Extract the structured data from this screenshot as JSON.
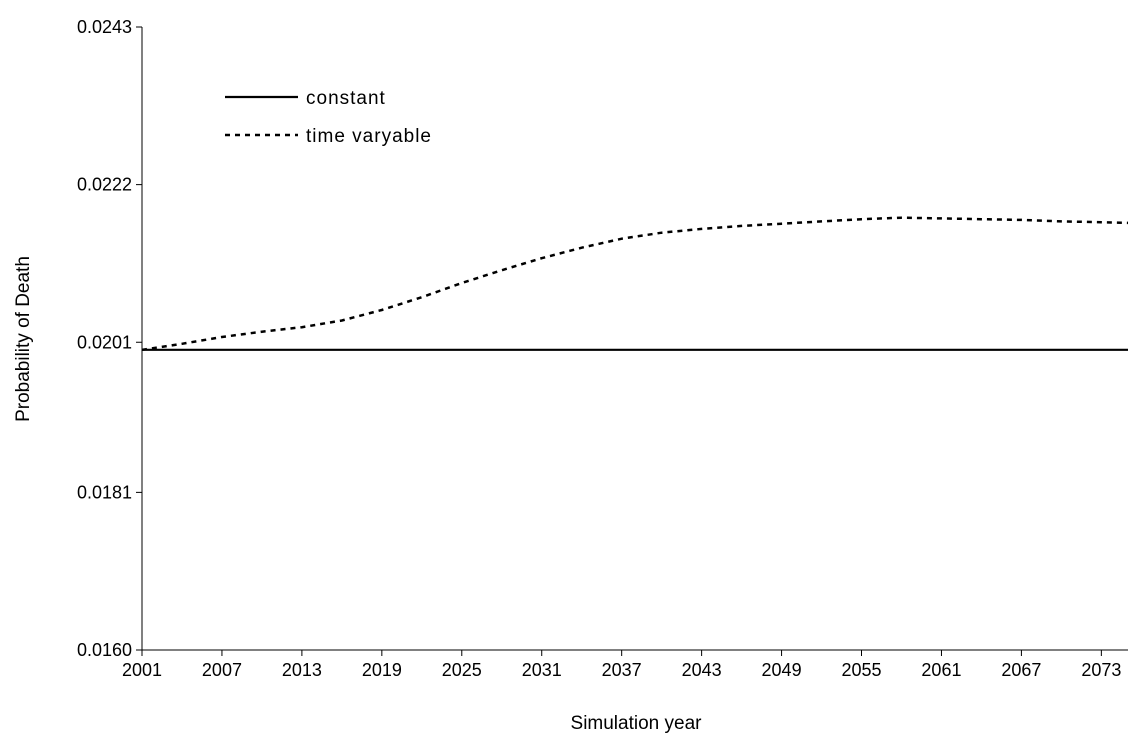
{
  "chart_data": {
    "type": "line",
    "title": "",
    "xlabel": "Simulation year",
    "ylabel": "Probability of Death",
    "xlim": [
      2001,
      2075
    ],
    "ylim": [
      0.016,
      0.0243
    ],
    "x_ticks": [
      2001,
      2007,
      2013,
      2019,
      2025,
      2031,
      2037,
      2043,
      2049,
      2055,
      2061,
      2067,
      2073
    ],
    "x_tick_labels": [
      "2001",
      "2007",
      "2013",
      "2019",
      "2025",
      "2031",
      "2037",
      "2043",
      "2049",
      "2055",
      "2061",
      "2067",
      "2073"
    ],
    "y_ticks": [
      0.016,
      0.0181,
      0.0201,
      0.0222,
      0.0243
    ],
    "y_tick_labels": [
      "0.0160",
      "0.0181",
      "0.0201",
      "0.0222",
      "0.0243"
    ],
    "grid": false,
    "legend_position": "top-left",
    "series": [
      {
        "name": "constant",
        "style": "solid",
        "color": "#000000",
        "x": [
          2001,
          2075
        ],
        "y": [
          0.02,
          0.02
        ]
      },
      {
        "name": "time varyable",
        "style": "dotted",
        "color": "#000000",
        "x": [
          2001,
          2004,
          2007,
          2010,
          2013,
          2016,
          2019,
          2022,
          2025,
          2028,
          2031,
          2034,
          2037,
          2040,
          2043,
          2046,
          2049,
          2052,
          2055,
          2058,
          2061,
          2064,
          2067,
          2070,
          2073,
          2075
        ],
        "y": [
          0.02,
          0.02008,
          0.02017,
          0.02024,
          0.0203,
          0.02039,
          0.02053,
          0.0207,
          0.02089,
          0.02106,
          0.02122,
          0.02136,
          0.02148,
          0.02156,
          0.02161,
          0.02165,
          0.02168,
          0.02171,
          0.02174,
          0.02176,
          0.02175,
          0.02174,
          0.02173,
          0.02171,
          0.0217,
          0.02169
        ]
      }
    ]
  }
}
